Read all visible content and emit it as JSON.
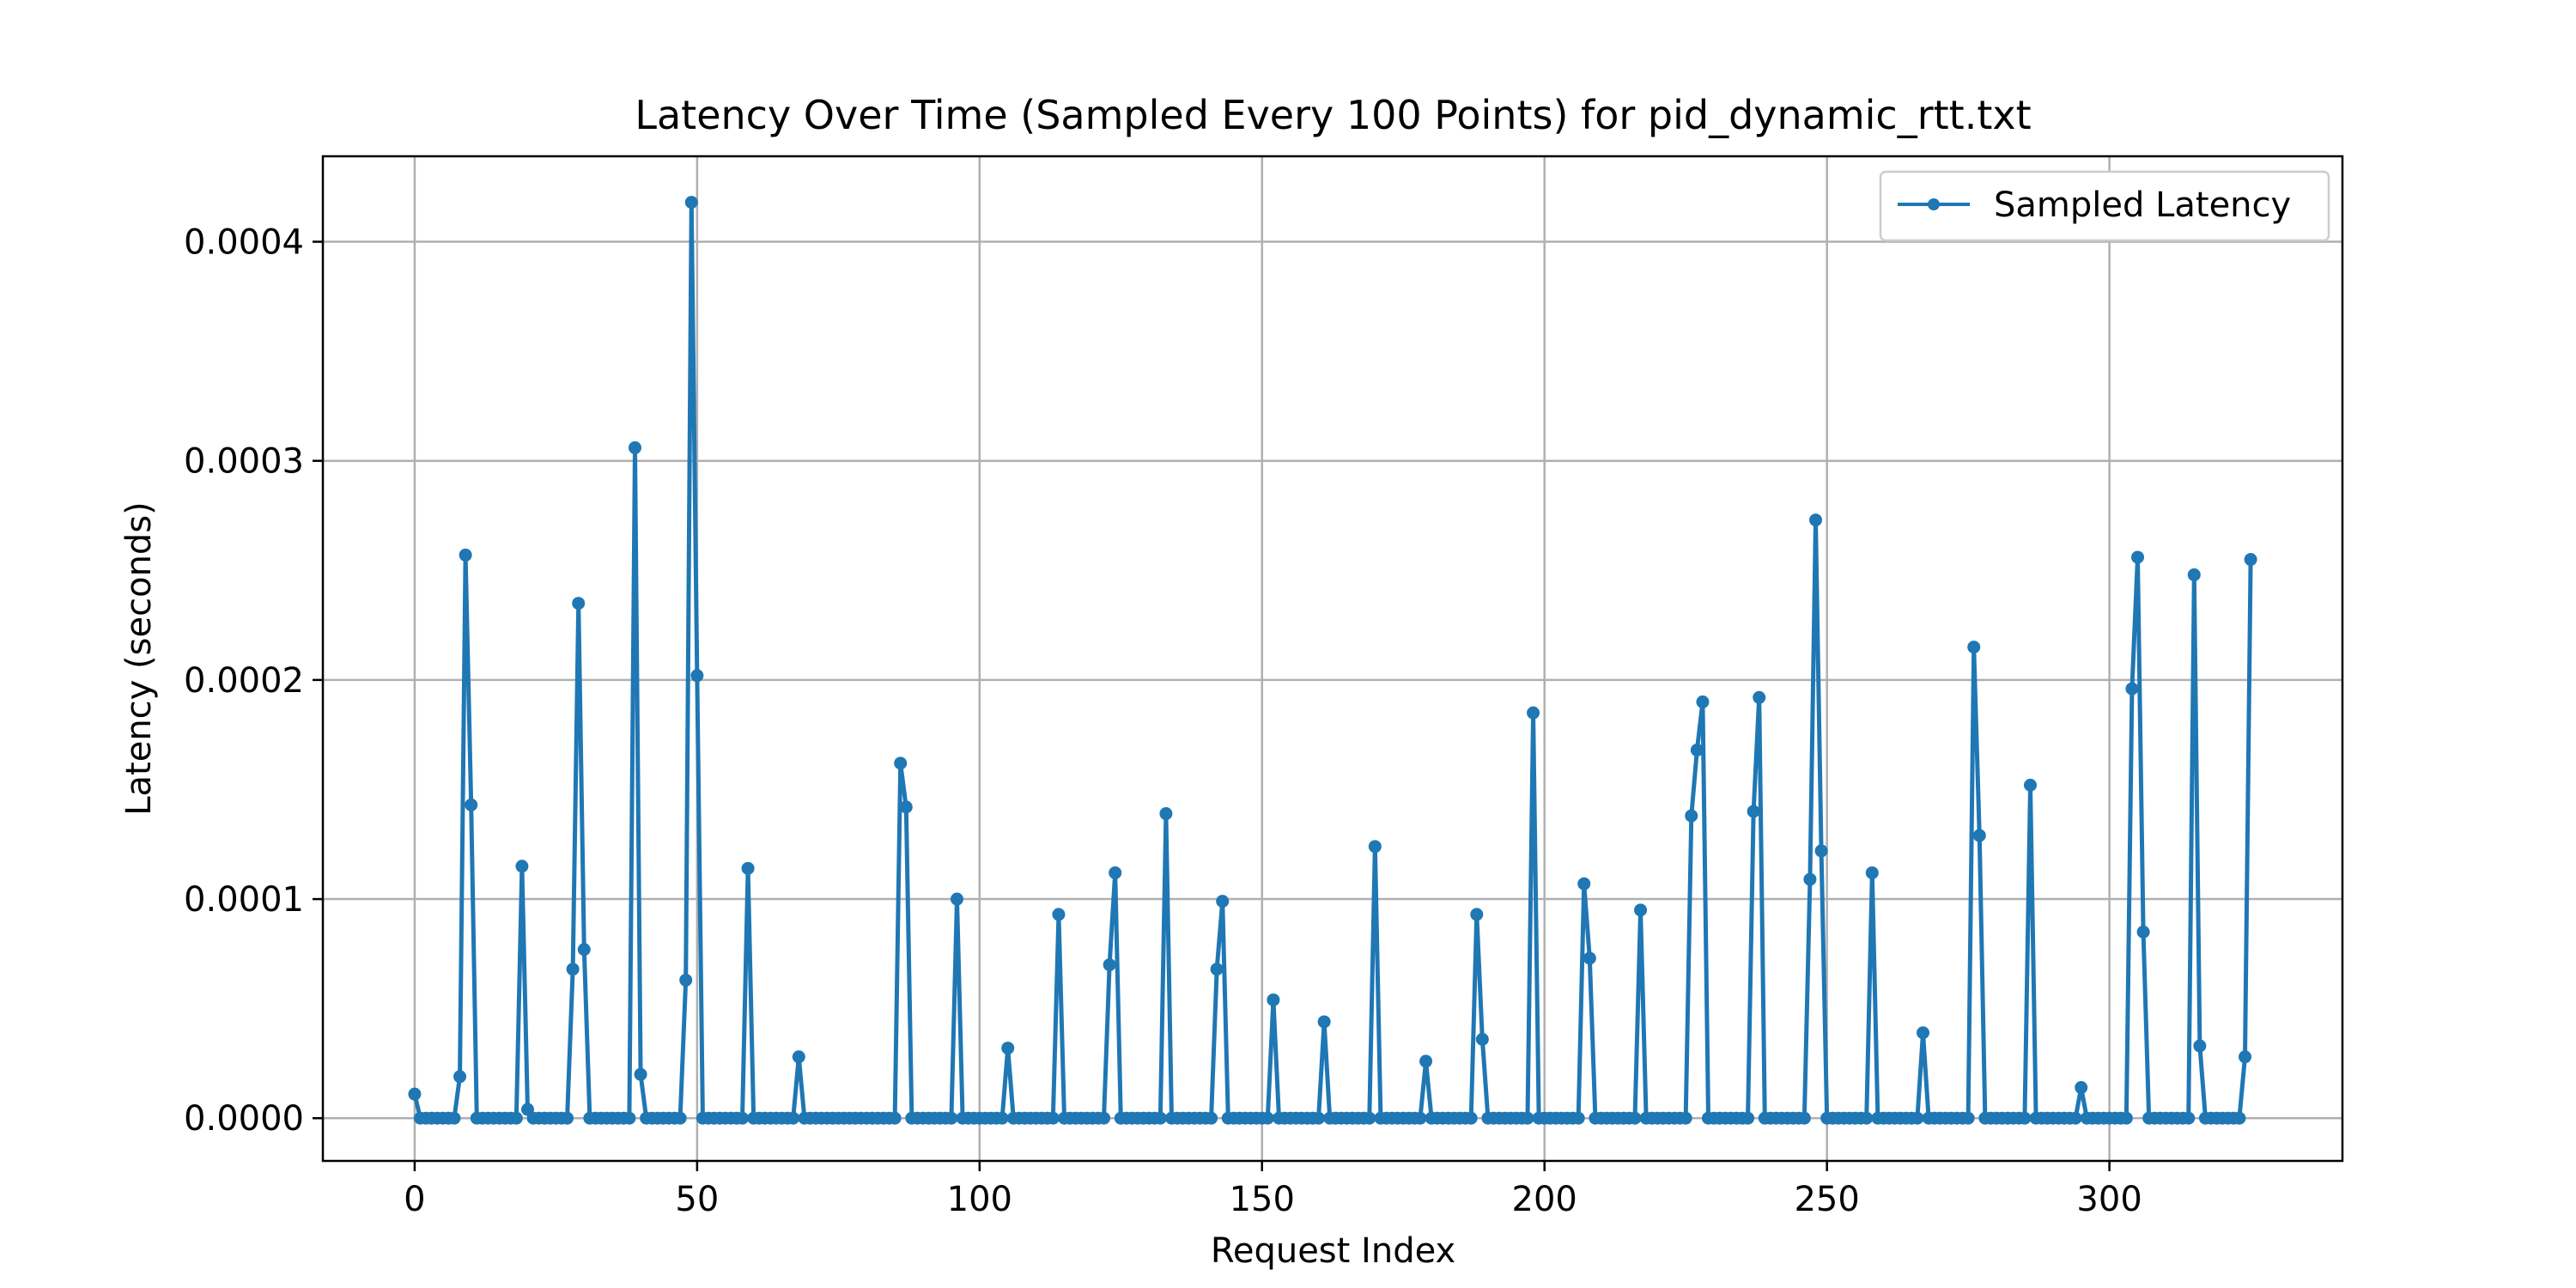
{
  "chart_data": {
    "type": "line",
    "title": "Latency Over Time (Sampled Every 100 Points) for pid_dynamic_rtt.txt",
    "xlabel": "Request Index",
    "ylabel": "Latency (seconds)",
    "xlim": [
      -16.25,
      341.25
    ],
    "ylim": [
      -1.95e-05,
      0.000439
    ],
    "xticks": [
      0,
      50,
      100,
      150,
      200,
      250,
      300
    ],
    "yticks": [
      0.0,
      0.0001,
      0.0002,
      0.0003,
      0.0004
    ],
    "ytick_labels": [
      "0.0000",
      "0.0001",
      "0.0002",
      "0.0003",
      "0.0004"
    ],
    "grid": true,
    "legend": "top-right",
    "series_color": "#1f77b4",
    "series": [
      {
        "name": "Sampled Latency",
        "x_start": 0,
        "values": [
          1.1e-05,
          0,
          0,
          0,
          0,
          0,
          0,
          0,
          1.9e-05,
          0.000257,
          0.000143,
          0,
          0,
          0,
          0,
          0,
          0,
          0,
          0,
          0.000115,
          4e-06,
          0,
          0,
          0,
          0,
          0,
          0,
          0,
          6.8e-05,
          0.000235,
          7.7e-05,
          0,
          0,
          0,
          0,
          0,
          0,
          0,
          0,
          0.000306,
          2e-05,
          0,
          0,
          0,
          0,
          0,
          0,
          0,
          6.3e-05,
          0.000418,
          0.000202,
          0,
          0,
          0,
          0,
          0,
          0,
          0,
          0,
          0.000114,
          0,
          0,
          0,
          0,
          0,
          0,
          0,
          0,
          2.8e-05,
          0,
          0,
          0,
          0,
          0,
          0,
          0,
          0,
          0,
          0,
          0,
          0,
          0,
          0,
          0,
          0,
          0,
          0.000162,
          0.000142,
          0,
          0,
          0,
          0,
          0,
          0,
          0,
          0,
          0.0001,
          0,
          0,
          0,
          0,
          0,
          0,
          0,
          0,
          3.2e-05,
          0,
          0,
          0,
          0,
          0,
          0,
          0,
          0,
          9.3e-05,
          0,
          0,
          0,
          0,
          0,
          0,
          0,
          0,
          7e-05,
          0.000112,
          0,
          0,
          0,
          0,
          0,
          0,
          0,
          0,
          0.000139,
          0,
          0,
          0,
          0,
          0,
          0,
          0,
          0,
          6.8e-05,
          9.9e-05,
          0,
          0,
          0,
          0,
          0,
          0,
          0,
          0,
          5.4e-05,
          0,
          0,
          0,
          0,
          0,
          0,
          0,
          0,
          4.4e-05,
          0,
          0,
          0,
          0,
          0,
          0,
          0,
          0,
          0.000124,
          0,
          0,
          0,
          0,
          0,
          0,
          0,
          0,
          2.6e-05,
          0,
          0,
          0,
          0,
          0,
          0,
          0,
          0,
          9.3e-05,
          3.6e-05,
          0,
          0,
          0,
          0,
          0,
          0,
          0,
          0,
          0.000185,
          0,
          0,
          0,
          0,
          0,
          0,
          0,
          0,
          0.000107,
          7.3e-05,
          0,
          0,
          0,
          0,
          0,
          0,
          0,
          0,
          9.5e-05,
          0,
          0,
          0,
          0,
          0,
          0,
          0,
          0,
          0.000138,
          0.000168,
          0.00019,
          0,
          0,
          0,
          0,
          0,
          0,
          0,
          0,
          0.00014,
          0.000192,
          0,
          0,
          0,
          0,
          0,
          0,
          0,
          0,
          0.000109,
          0.000273,
          0.000122,
          0,
          0,
          0,
          0,
          0,
          0,
          0,
          0,
          0.000112,
          0,
          0,
          0,
          0,
          0,
          0,
          0,
          0,
          3.9e-05,
          0,
          0,
          0,
          0,
          0,
          0,
          0,
          0,
          0.000215,
          0.000129,
          0,
          0,
          0,
          0,
          0,
          0,
          0,
          0,
          0.000152,
          0,
          0,
          0,
          0,
          0,
          0,
          0,
          0,
          1.4e-05,
          0,
          0,
          0,
          0,
          0,
          0,
          0,
          0,
          0.000196,
          0.000256,
          8.5e-05,
          0,
          0,
          0,
          0,
          0,
          0,
          0,
          0,
          0.000248,
          3.3e-05,
          0,
          0,
          0,
          0,
          0,
          0,
          0,
          2.8e-05,
          0.000255
        ]
      }
    ]
  }
}
